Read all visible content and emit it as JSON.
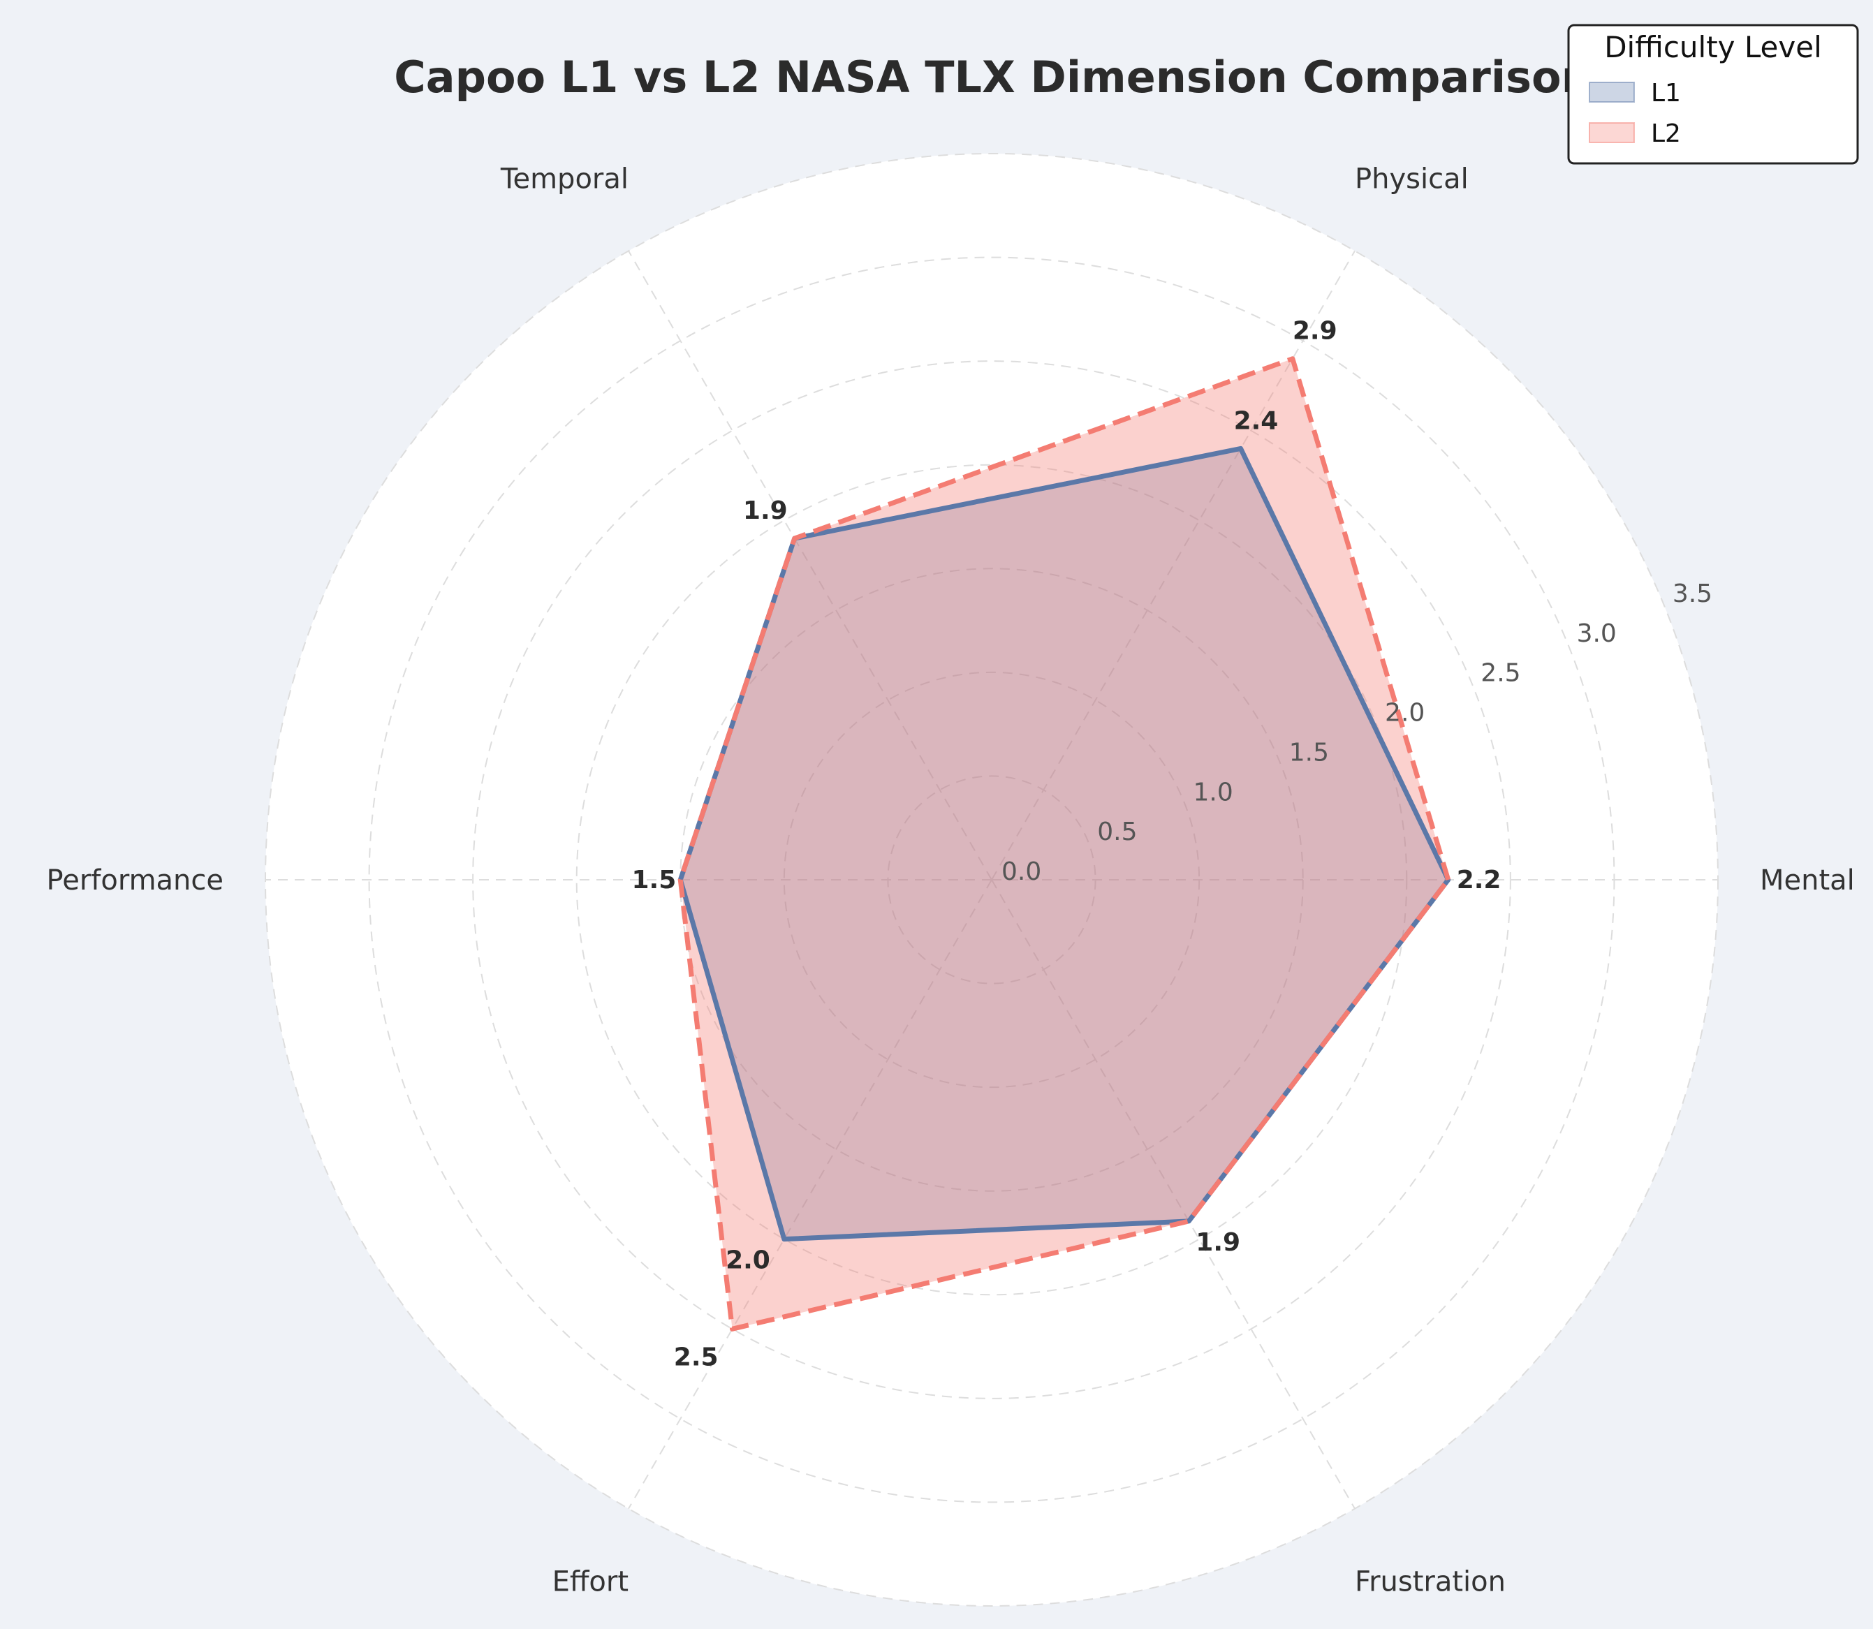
{
  "chart_data": {
    "type": "radar",
    "title": "Capoo L1 vs L2 NASA TLX Dimension Comparison",
    "categories": [
      "Mental",
      "Physical",
      "Temporal",
      "Performance",
      "Effort",
      "Frustration"
    ],
    "series": [
      {
        "name": "L1",
        "values": [
          2.2,
          2.4,
          1.9,
          1.5,
          2.0,
          1.9
        ],
        "color": "#5b78a8",
        "line_style": "solid"
      },
      {
        "name": "L2",
        "values": [
          2.2,
          2.9,
          1.9,
          1.5,
          2.5,
          1.9
        ],
        "color": "#f47c72",
        "line_style": "dashed"
      }
    ],
    "radial_ticks": [
      "0.0",
      "0.5",
      "1.0",
      "1.5",
      "2.0",
      "2.5",
      "3.0",
      "3.5"
    ],
    "rlim": [
      0,
      3.5
    ],
    "grid": true,
    "legend": {
      "title": "Difficulty Level",
      "placement": "top-right"
    },
    "value_labels": {
      "L1": [
        "2.2",
        "2.4",
        "1.9",
        "1.5",
        "2.0",
        "1.9"
      ],
      "L2": [
        "",
        "2.9",
        "",
        "",
        "2.5",
        ""
      ]
    }
  }
}
